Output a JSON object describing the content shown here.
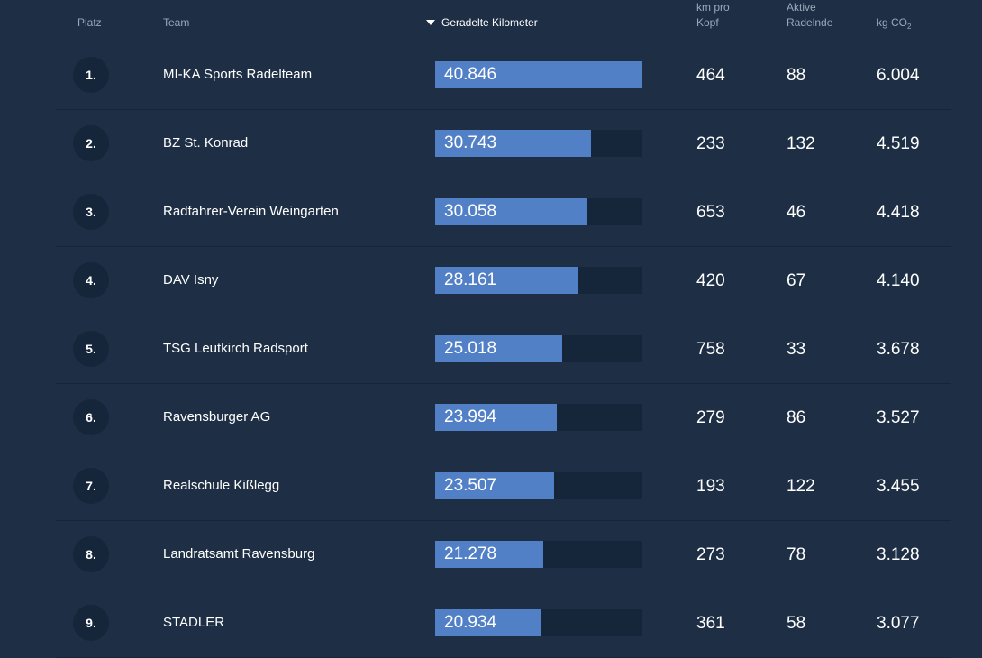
{
  "header": {
    "rank": "Platz",
    "team": "Team",
    "km": "Geradelte Kilometer",
    "km_per_head_line1": "km pro",
    "km_per_head_line2": "Kopf",
    "active_line1": "Aktive",
    "active_line2": "Radelnde",
    "co2_prefix": "kg CO",
    "co2_sub": "2"
  },
  "colors": {
    "background": "#1e2f45",
    "bar_fill": "#5280c6",
    "bar_track": "#15253a"
  },
  "rows": [
    {
      "rank": "1.",
      "team": "MI-KA Sports Radelteam",
      "km": "40.846",
      "km_fraction": 1.0,
      "km_per_head": "464",
      "active": "88",
      "co2": "6.004"
    },
    {
      "rank": "2.",
      "team": "BZ St. Konrad",
      "km": "30.743",
      "km_fraction": 0.7527,
      "km_per_head": "233",
      "active": "132",
      "co2": "4.519"
    },
    {
      "rank": "3.",
      "team": "Radfahrer-Verein Weingarten",
      "km": "30.058",
      "km_fraction": 0.7359,
      "km_per_head": "653",
      "active": "46",
      "co2": "4.418"
    },
    {
      "rank": "4.",
      "team": "DAV Isny",
      "km": "28.161",
      "km_fraction": 0.6894,
      "km_per_head": "420",
      "active": "67",
      "co2": "4.140"
    },
    {
      "rank": "5.",
      "team": "TSG Leutkirch Radsport",
      "km": "25.018",
      "km_fraction": 0.6125,
      "km_per_head": "758",
      "active": "33",
      "co2": "3.678"
    },
    {
      "rank": "6.",
      "team": "Ravensburger AG",
      "km": "23.994",
      "km_fraction": 0.5874,
      "km_per_head": "279",
      "active": "86",
      "co2": "3.527"
    },
    {
      "rank": "7.",
      "team": "Realschule Kißlegg",
      "km": "23.507",
      "km_fraction": 0.5755,
      "km_per_head": "193",
      "active": "122",
      "co2": "3.455"
    },
    {
      "rank": "8.",
      "team": "Landratsamt Ravensburg",
      "km": "21.278",
      "km_fraction": 0.5209,
      "km_per_head": "273",
      "active": "78",
      "co2": "3.128"
    },
    {
      "rank": "9.",
      "team": "STADLER",
      "km": "20.934",
      "km_fraction": 0.5125,
      "km_per_head": "361",
      "active": "58",
      "co2": "3.077"
    }
  ]
}
